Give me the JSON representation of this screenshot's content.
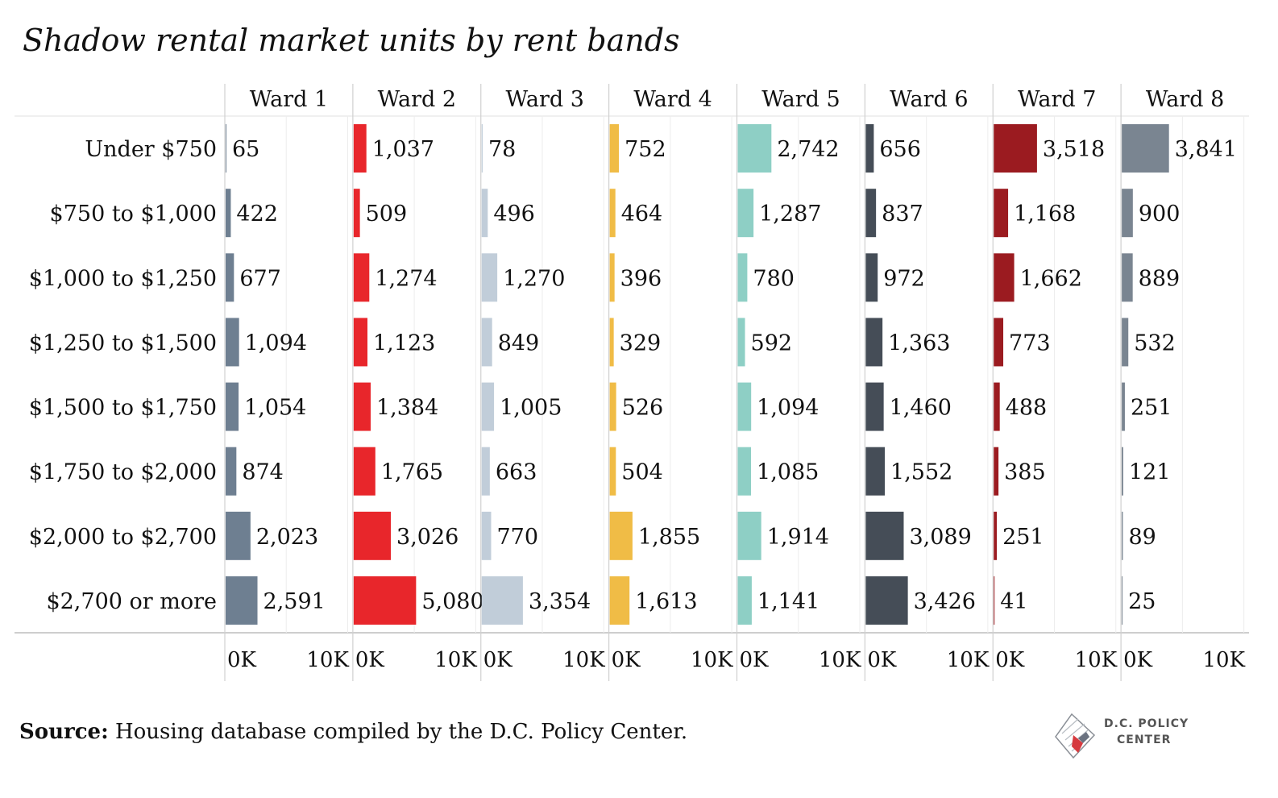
{
  "chart_data": {
    "type": "bar",
    "title": "Shadow rental market units by rent bands",
    "facets": [
      "Ward 1",
      "Ward 2",
      "Ward 3",
      "Ward 4",
      "Ward 5",
      "Ward 6",
      "Ward 7",
      "Ward 8"
    ],
    "categories": [
      "Under $750",
      "$750 to $1,000",
      "$1,000 to $1,250",
      "$1,250 to $1,500",
      "$1,500 to $1,750",
      "$1,750 to $2,000",
      "$2,000 to $2,700",
      "$2,700 or more"
    ],
    "series": [
      {
        "name": "Ward 1",
        "color": "#6e7f91",
        "values": [
          65,
          422,
          677,
          1094,
          1054,
          874,
          2023,
          2591
        ],
        "labels": [
          "65",
          "422",
          "677",
          "1,094",
          "1,054",
          "874",
          "2,023",
          "2,591"
        ]
      },
      {
        "name": "Ward 2",
        "color": "#e8262b",
        "values": [
          1037,
          509,
          1274,
          1123,
          1384,
          1765,
          3026,
          5080
        ],
        "labels": [
          "1,037",
          "509",
          "1,274",
          "1,123",
          "1,384",
          "1,765",
          "3,026",
          "5,080"
        ]
      },
      {
        "name": "Ward 3",
        "color": "#c1cdd9",
        "values": [
          78,
          496,
          1270,
          849,
          1005,
          663,
          770,
          3354
        ],
        "labels": [
          "78",
          "496",
          "1,270",
          "849",
          "1,005",
          "663",
          "770",
          "3,354"
        ]
      },
      {
        "name": "Ward 4",
        "color": "#f0bc46",
        "values": [
          752,
          464,
          396,
          329,
          526,
          504,
          1855,
          1613
        ],
        "labels": [
          "752",
          "464",
          "396",
          "329",
          "526",
          "504",
          "1,855",
          "1,613"
        ]
      },
      {
        "name": "Ward 5",
        "color": "#8ecfc5",
        "values": [
          2742,
          1287,
          780,
          592,
          1094,
          1085,
          1914,
          1141
        ],
        "labels": [
          "2,742",
          "1,287",
          "780",
          "592",
          "1,094",
          "1,085",
          "1,914",
          "1,141"
        ]
      },
      {
        "name": "Ward 6",
        "color": "#454d57",
        "values": [
          656,
          837,
          972,
          1363,
          1460,
          1552,
          3089,
          3426
        ],
        "labels": [
          "656",
          "837",
          "972",
          "1,363",
          "1,460",
          "1,552",
          "3,089",
          "3,426"
        ]
      },
      {
        "name": "Ward 7",
        "color": "#9b1b20",
        "values": [
          3518,
          1168,
          1662,
          773,
          488,
          385,
          251,
          41
        ],
        "labels": [
          "3,518",
          "1,168",
          "1,662",
          "773",
          "488",
          "385",
          "251",
          "41"
        ]
      },
      {
        "name": "Ward 8",
        "color": "#7a8591",
        "values": [
          3841,
          900,
          889,
          532,
          251,
          121,
          89,
          25
        ],
        "labels": [
          "3,841",
          "900",
          "889",
          "532",
          "251",
          "121",
          "89",
          "25"
        ]
      }
    ],
    "xlim": [
      0,
      10000
    ],
    "x_ticks": [
      "0K",
      "10K"
    ],
    "grid": true,
    "legend": "none"
  },
  "source": {
    "label": "Source:",
    "text": " Housing database compiled by the D.C. Policy Center."
  },
  "logo": {
    "line1": "D.C. POLICY",
    "line2": "CENTER"
  }
}
